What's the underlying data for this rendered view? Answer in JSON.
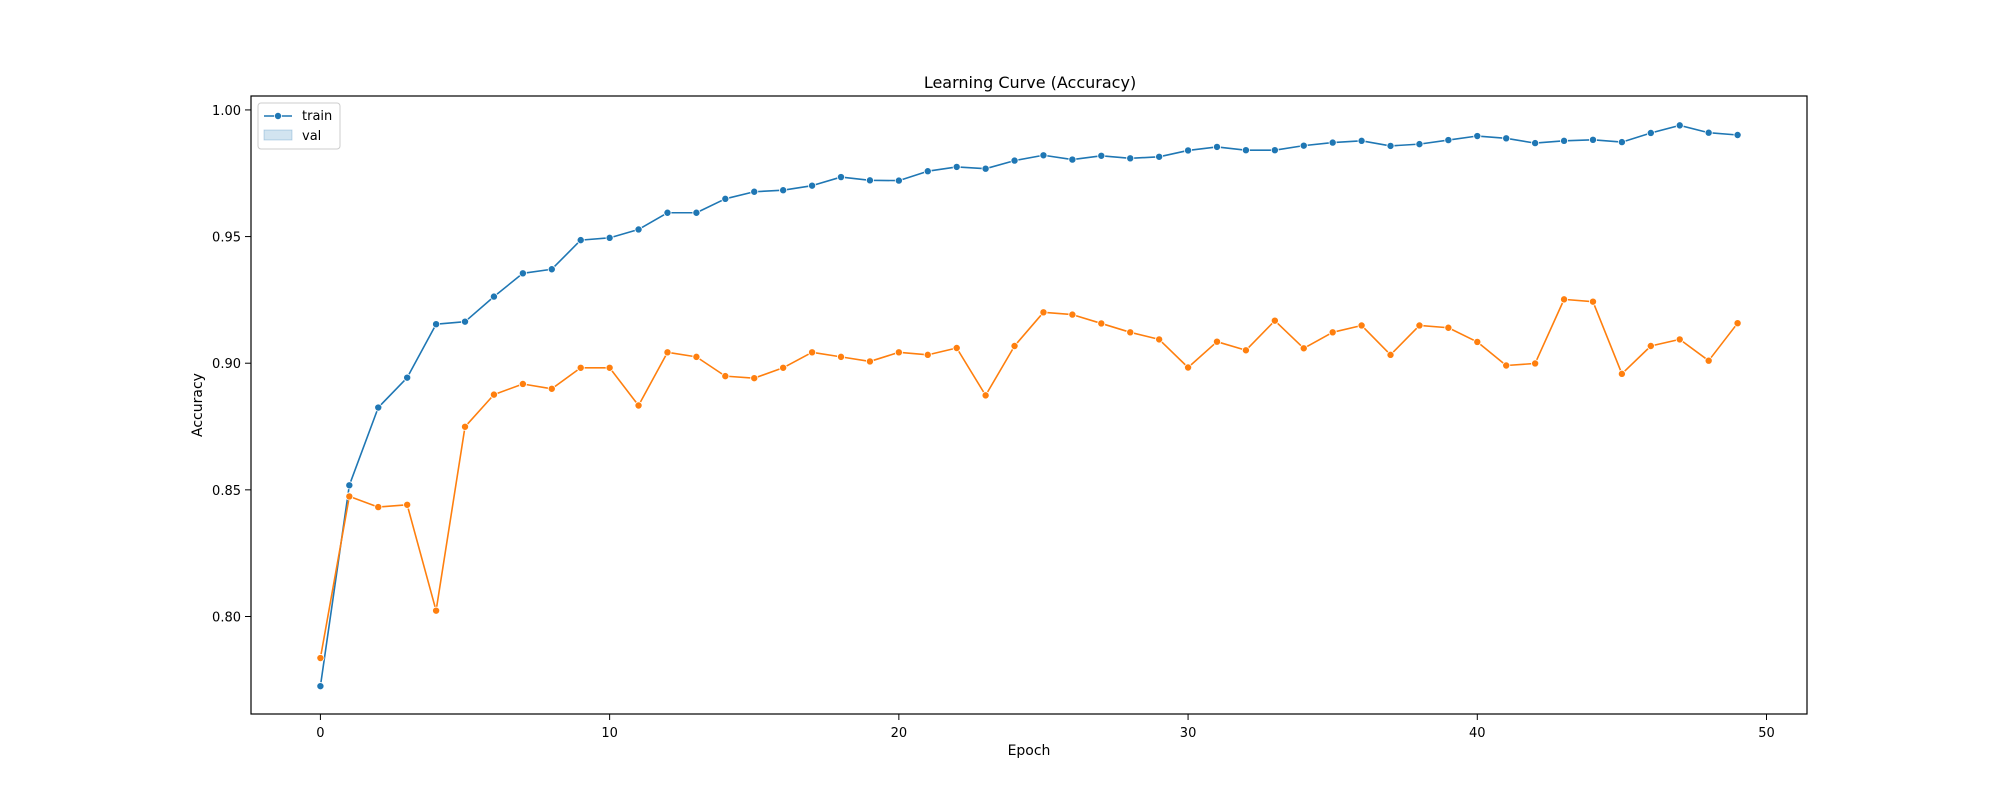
{
  "chart_data": {
    "type": "line",
    "title": "Learning Curve (Accuracy)",
    "xlabel": "Epoch",
    "ylabel": "Accuracy",
    "xlim": [
      -2.4,
      51.4
    ],
    "ylim": [
      0.7615,
      1.0055
    ],
    "xticks": [
      0,
      10,
      20,
      30,
      40,
      50
    ],
    "yticks": [
      0.8,
      0.85,
      0.9,
      0.95,
      1.0
    ],
    "xtick_labels": [
      "0",
      "10",
      "20",
      "30",
      "40",
      "50"
    ],
    "ytick_labels": [
      "0.80",
      "0.85",
      "0.90",
      "0.95",
      "1.00"
    ],
    "grid": false,
    "legend": {
      "position": "top-left",
      "entries": [
        {
          "label": "train",
          "style": "line-marker",
          "color": "#1f77b4"
        },
        {
          "label": "val",
          "style": "patch",
          "color": "#aec7e8"
        }
      ]
    },
    "x": [
      0,
      1,
      2,
      3,
      4,
      5,
      6,
      7,
      8,
      9,
      10,
      11,
      12,
      13,
      14,
      15,
      16,
      17,
      18,
      19,
      20,
      21,
      22,
      23,
      24,
      25,
      26,
      27,
      28,
      29,
      30,
      31,
      32,
      33,
      34,
      35,
      36,
      37,
      38,
      39,
      40,
      41,
      42,
      43,
      44,
      45,
      46,
      47,
      48,
      49
    ],
    "series": [
      {
        "name": "train",
        "color": "#1f77b4",
        "values": [
          0.7725,
          0.8518,
          0.8825,
          0.8943,
          0.9154,
          0.9164,
          0.9263,
          0.9355,
          0.9371,
          0.9486,
          0.9495,
          0.9528,
          0.9594,
          0.9594,
          0.9649,
          0.9677,
          0.9683,
          0.9701,
          0.9735,
          0.9722,
          0.9721,
          0.9758,
          0.9775,
          0.9768,
          0.98,
          0.9821,
          0.9804,
          0.9819,
          0.9809,
          0.9815,
          0.984,
          0.9854,
          0.9841,
          0.9841,
          0.9859,
          0.9871,
          0.9878,
          0.9858,
          0.9865,
          0.9881,
          0.9897,
          0.9888,
          0.9869,
          0.9878,
          0.9882,
          0.9873,
          0.9909,
          0.9939,
          0.991,
          0.9901
        ]
      },
      {
        "name": "",
        "color": "#ff7f0e",
        "values": [
          0.7836,
          0.8474,
          0.8432,
          0.8441,
          0.8023,
          0.8749,
          0.8876,
          0.8918,
          0.8899,
          0.8982,
          0.8982,
          0.8833,
          0.9043,
          0.9025,
          0.8949,
          0.8941,
          0.8982,
          0.9043,
          0.9025,
          0.9007,
          0.9043,
          0.9033,
          0.906,
          0.8873,
          0.9068,
          0.9201,
          0.9192,
          0.9157,
          0.9122,
          0.9094,
          0.8983,
          0.9085,
          0.9051,
          0.9168,
          0.9059,
          0.9122,
          0.9149,
          0.9033,
          0.9149,
          0.914,
          0.9084,
          0.8991,
          0.8999,
          0.9252,
          0.9243,
          0.8958,
          0.9068,
          0.9094,
          0.901,
          0.9158
        ]
      }
    ]
  }
}
